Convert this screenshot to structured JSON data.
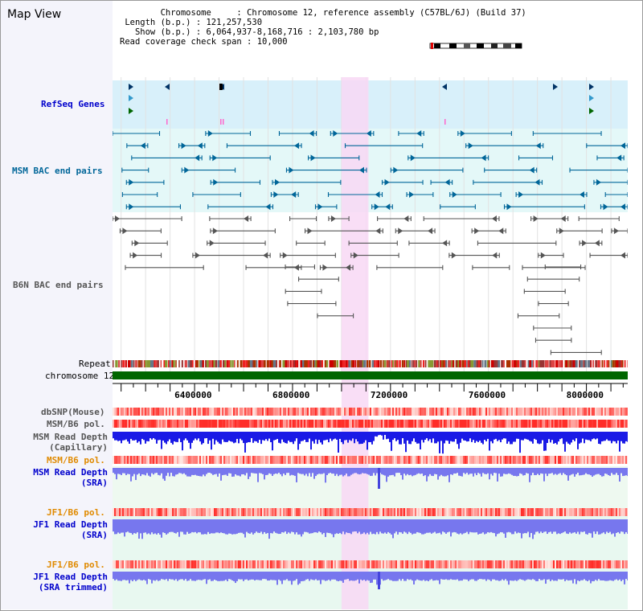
{
  "header": {
    "title": "Map View",
    "chromosome_label": "Chromosome",
    "chromosome_value": "Chromosome 12, reference assembly (C57BL/6J) (Build 37)",
    "length_label": "Length (b.p.)",
    "length_value": "121,257,530",
    "show_label": "Show (b.p.)",
    "show_value": "6,064,937-8,168,716 : 2,103,780 bp",
    "coverage_label": "Read coverage check span",
    "coverage_value": "10,000"
  },
  "tracks": {
    "refseq": "RefSeq Genes",
    "msm_bac": "MSM BAC end pairs",
    "b6n_bac": "B6N BAC end pairs",
    "repeat": "Repeat",
    "chromosome": "chromosome 12",
    "dbsnp": "dbSNP(Mouse)",
    "msm_pol": "MSM/B6 pol.",
    "msm_depth_cap_1": "MSM Read Depth",
    "msm_depth_cap_2": "(Capillary)",
    "msm_pol2": "MSM/B6 pol.",
    "msm_depth_sra_1": "MSM Read Depth",
    "msm_depth_sra_2": "(SRA)",
    "jf1_pol": "JF1/B6 pol.",
    "jf1_depth_1": "JF1 Read Depth",
    "jf1_depth_2": "(SRA)",
    "jf1_pol2": "JF1/B6 pol.",
    "jf1_trim_1": "JF1 Read Depth",
    "jf1_trim_2": "(SRA trimmed)"
  },
  "axis": {
    "range_bp": [
      6064937,
      8168716
    ],
    "ticks": [
      "6400000",
      "6800000",
      "7200000",
      "7600000",
      "8000000"
    ],
    "tick_values": [
      6400000,
      6800000,
      7200000,
      7600000,
      8000000
    ]
  },
  "highlight_bp": [
    7000000,
    7110000
  ],
  "colors": {
    "refseq": "#0000cc",
    "msm_bac": "#006699",
    "b6n_bac": "#333333",
    "pol_orange": "#e08a00",
    "depth_blue": "#0000cc",
    "highlight": "#f8d8f4",
    "chrom_green": "#006600"
  },
  "icons": {
    "gene_arrow": "triangle-arrow-icon",
    "ideogram": "chromosome-ideogram-icon"
  }
}
